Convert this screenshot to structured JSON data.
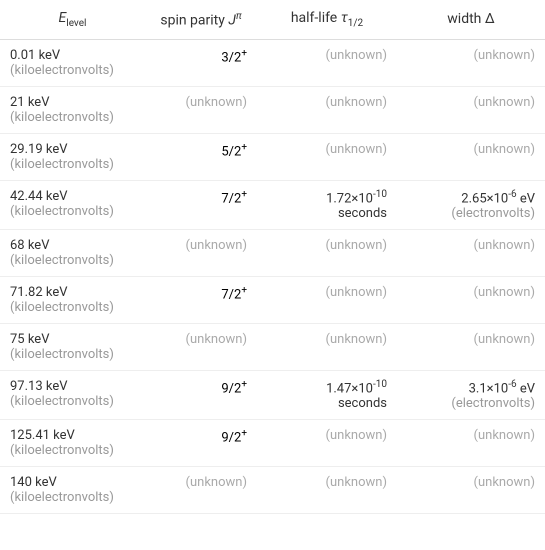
{
  "headers": {
    "elevel_base": "E",
    "elevel_sub": "level",
    "spin_text": "spin parity ",
    "spin_var": "J",
    "spin_sup": "π",
    "halflife_text": "half-life ",
    "halflife_var": "τ",
    "halflife_sub": "1/2",
    "width_text": "width ",
    "width_var": "Δ"
  },
  "rows": [
    {
      "e_val": "0.01 keV",
      "e_unit": "(kiloelectronvolts)",
      "spin_base": "3/2",
      "spin_sup": "+",
      "spin_unknown": false,
      "halflife_val": "",
      "halflife_exp": "",
      "halflife_unit": "",
      "halflife_unknown": true,
      "width_val": "",
      "width_exp": "",
      "width_unit": "",
      "width_ev": "",
      "width_unknown": true
    },
    {
      "e_val": "21 keV",
      "e_unit": "(kiloelectronvolts)",
      "spin_base": "",
      "spin_sup": "",
      "spin_unknown": true,
      "halflife_val": "",
      "halflife_exp": "",
      "halflife_unit": "",
      "halflife_unknown": true,
      "width_val": "",
      "width_exp": "",
      "width_unit": "",
      "width_ev": "",
      "width_unknown": true
    },
    {
      "e_val": "29.19 keV",
      "e_unit": "(kiloelectronvolts)",
      "spin_base": "5/2",
      "spin_sup": "+",
      "spin_unknown": false,
      "halflife_val": "",
      "halflife_exp": "",
      "halflife_unit": "",
      "halflife_unknown": true,
      "width_val": "",
      "width_exp": "",
      "width_unit": "",
      "width_ev": "",
      "width_unknown": true
    },
    {
      "e_val": "42.44 keV",
      "e_unit": "(kiloelectronvolts)",
      "spin_base": "7/2",
      "spin_sup": "+",
      "spin_unknown": false,
      "halflife_val": "1.72×10",
      "halflife_exp": "-10",
      "halflife_unit": "seconds",
      "halflife_unknown": false,
      "width_val": "2.65×10",
      "width_exp": "-6",
      "width_unit": "(electronvolts)",
      "width_ev": " eV",
      "width_unknown": false
    },
    {
      "e_val": "68 keV",
      "e_unit": "(kiloelectronvolts)",
      "spin_base": "",
      "spin_sup": "",
      "spin_unknown": true,
      "halflife_val": "",
      "halflife_exp": "",
      "halflife_unit": "",
      "halflife_unknown": true,
      "width_val": "",
      "width_exp": "",
      "width_unit": "",
      "width_ev": "",
      "width_unknown": true
    },
    {
      "e_val": "71.82 keV",
      "e_unit": "(kiloelectronvolts)",
      "spin_base": "7/2",
      "spin_sup": "+",
      "spin_unknown": false,
      "halflife_val": "",
      "halflife_exp": "",
      "halflife_unit": "",
      "halflife_unknown": true,
      "width_val": "",
      "width_exp": "",
      "width_unit": "",
      "width_ev": "",
      "width_unknown": true
    },
    {
      "e_val": "75 keV",
      "e_unit": "(kiloelectronvolts)",
      "spin_base": "",
      "spin_sup": "",
      "spin_unknown": true,
      "halflife_val": "",
      "halflife_exp": "",
      "halflife_unit": "",
      "halflife_unknown": true,
      "width_val": "",
      "width_exp": "",
      "width_unit": "",
      "width_ev": "",
      "width_unknown": true
    },
    {
      "e_val": "97.13 keV",
      "e_unit": "(kiloelectronvolts)",
      "spin_base": "9/2",
      "spin_sup": "+",
      "spin_unknown": false,
      "halflife_val": "1.47×10",
      "halflife_exp": "-10",
      "halflife_unit": "seconds",
      "halflife_unknown": false,
      "width_val": "3.1×10",
      "width_exp": "-6",
      "width_unit": "(electronvolts)",
      "width_ev": " eV",
      "width_unknown": false
    },
    {
      "e_val": "125.41 keV",
      "e_unit": "(kiloelectronvolts)",
      "spin_base": "9/2",
      "spin_sup": "+",
      "spin_unknown": false,
      "halflife_val": "",
      "halflife_exp": "",
      "halflife_unit": "",
      "halflife_unknown": true,
      "width_val": "",
      "width_exp": "",
      "width_unit": "",
      "width_ev": "",
      "width_unknown": true
    },
    {
      "e_val": "140 keV",
      "e_unit": "(kiloelectronvolts)",
      "spin_base": "",
      "spin_sup": "",
      "spin_unknown": true,
      "halflife_val": "",
      "halflife_exp": "",
      "halflife_unit": "",
      "halflife_unknown": true,
      "width_val": "",
      "width_exp": "",
      "width_unit": "",
      "width_ev": "",
      "width_unknown": true
    }
  ],
  "unknown_label": "(unknown)"
}
